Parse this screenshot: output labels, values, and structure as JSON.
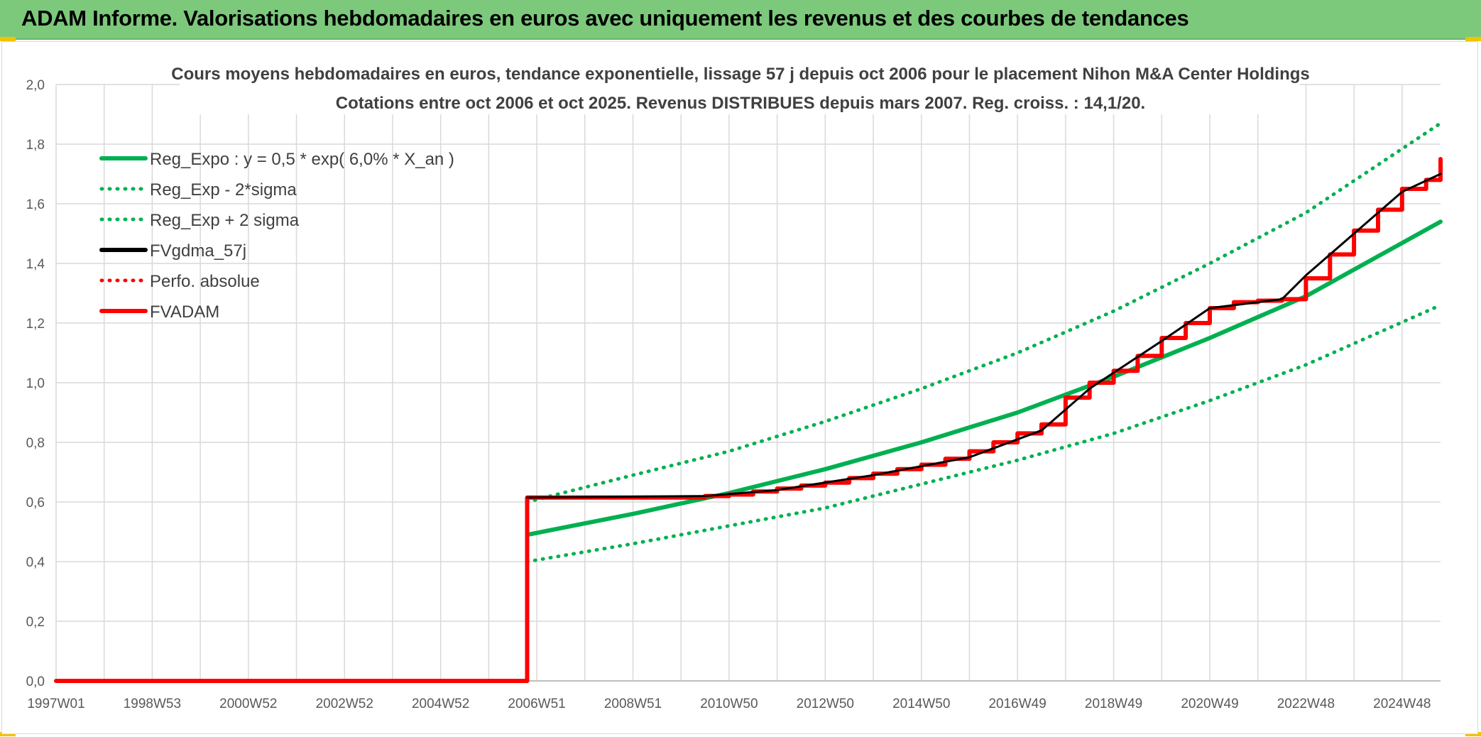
{
  "header": {
    "title": "ADAM Informe. Valorisations hebdomadaires en euros avec uniquement les revenus et des courbes de tendances"
  },
  "colors": {
    "header_bg": "#7cc97c",
    "green": "#00b050",
    "red": "#ff0000",
    "black": "#000000",
    "grid": "#d9d9d9",
    "corner": "#f2c300"
  },
  "chart_data": {
    "type": "line",
    "title": "Cours moyens hebdomadaires en euros, tendance exponentielle, lissage 57 j depuis oct 2006 pour le placement Nihon M&A Center Holdings",
    "subtitle": "Cotations entre oct 2006 et oct 2025. Revenus DISTRIBUES depuis mars 2007. Reg. croiss. : 14,1/20.",
    "xlabel": "",
    "ylabel": "",
    "ylim": [
      0,
      2.0
    ],
    "yticks": [
      "0,0",
      "0,2",
      "0,4",
      "0,6",
      "0,8",
      "1,0",
      "1,2",
      "1,4",
      "1,6",
      "1,8",
      "2,0"
    ],
    "xlim": [
      1997.0,
      2025.8
    ],
    "xticks": [
      {
        "x": 1997.0,
        "label": "1997W01"
      },
      {
        "x": 1999.0,
        "label": "1998W53"
      },
      {
        "x": 2001.0,
        "label": "2000W52"
      },
      {
        "x": 2003.0,
        "label": "2002W52"
      },
      {
        "x": 2005.0,
        "label": "2004W52"
      },
      {
        "x": 2007.0,
        "label": "2006W51"
      },
      {
        "x": 2009.0,
        "label": "2008W51"
      },
      {
        "x": 2011.0,
        "label": "2010W50"
      },
      {
        "x": 2013.0,
        "label": "2012W50"
      },
      {
        "x": 2015.0,
        "label": "2014W50"
      },
      {
        "x": 2017.0,
        "label": "2016W49"
      },
      {
        "x": 2019.0,
        "label": "2018W49"
      },
      {
        "x": 2021.0,
        "label": "2020W49"
      },
      {
        "x": 2023.0,
        "label": "2022W48"
      },
      {
        "x": 2025.0,
        "label": "2024W48"
      }
    ],
    "grid": true,
    "legend_position": "top-left",
    "series": [
      {
        "name": "Reg_Expo : y = 0,5 * exp( 6,0% *  X_an )",
        "color": "#00b050",
        "style": "solid",
        "x": [
          2006.8,
          2009,
          2011,
          2013,
          2015,
          2017,
          2019,
          2021,
          2023,
          2025.8
        ],
        "y": [
          0.49,
          0.56,
          0.63,
          0.71,
          0.8,
          0.9,
          1.02,
          1.15,
          1.29,
          1.54
        ]
      },
      {
        "name": "Reg_Exp - 2*sigma",
        "color": "#00b050",
        "style": "dotted",
        "x": [
          2006.8,
          2009,
          2011,
          2013,
          2015,
          2017,
          2019,
          2021,
          2023,
          2025.8
        ],
        "y": [
          0.4,
          0.46,
          0.52,
          0.58,
          0.66,
          0.74,
          0.83,
          0.94,
          1.06,
          1.26
        ]
      },
      {
        "name": "Reg_Exp + 2 sigma",
        "color": "#00b050",
        "style": "dotted",
        "x": [
          2006.8,
          2009,
          2011,
          2013,
          2015,
          2017,
          2019,
          2021,
          2023,
          2025.8
        ],
        "y": [
          0.6,
          0.69,
          0.77,
          0.87,
          0.98,
          1.1,
          1.24,
          1.4,
          1.57,
          1.87
        ]
      },
      {
        "name": "FVgdma_57j",
        "color": "#000000",
        "style": "solid",
        "x": [
          2006.8,
          2010.5,
          2012,
          2014,
          2016,
          2017.5,
          2018.5,
          2020,
          2021,
          2022.5,
          2023,
          2024,
          2025,
          2025.8
        ],
        "y": [
          0.615,
          0.62,
          0.64,
          0.69,
          0.75,
          0.84,
          0.98,
          1.14,
          1.25,
          1.28,
          1.36,
          1.5,
          1.64,
          1.7
        ]
      },
      {
        "name": "Perfo. absolue",
        "color": "#ff0000",
        "style": "dotted",
        "x": [],
        "y": []
      },
      {
        "name": "FVADAM",
        "color": "#ff0000",
        "style": "solid",
        "x": [
          1997.0,
          2006.75,
          2006.8,
          2010.0,
          2010.5,
          2011.0,
          2011.5,
          2012.0,
          2012.5,
          2013.0,
          2013.5,
          2014.0,
          2014.5,
          2015.0,
          2015.5,
          2016.0,
          2016.5,
          2017.0,
          2017.5,
          2018.0,
          2018.5,
          2019.0,
          2019.5,
          2020.0,
          2020.5,
          2021.0,
          2021.5,
          2022.0,
          2022.5,
          2023.0,
          2023.5,
          2024.0,
          2024.5,
          2025.0,
          2025.5,
          2025.8
        ],
        "y": [
          0.0,
          0.0,
          0.615,
          0.615,
          0.62,
          0.625,
          0.635,
          0.645,
          0.655,
          0.665,
          0.68,
          0.695,
          0.71,
          0.725,
          0.745,
          0.77,
          0.8,
          0.83,
          0.86,
          0.95,
          1.0,
          1.04,
          1.09,
          1.15,
          1.2,
          1.25,
          1.27,
          1.275,
          1.28,
          1.35,
          1.43,
          1.51,
          1.58,
          1.65,
          1.68,
          1.75
        ]
      }
    ]
  }
}
